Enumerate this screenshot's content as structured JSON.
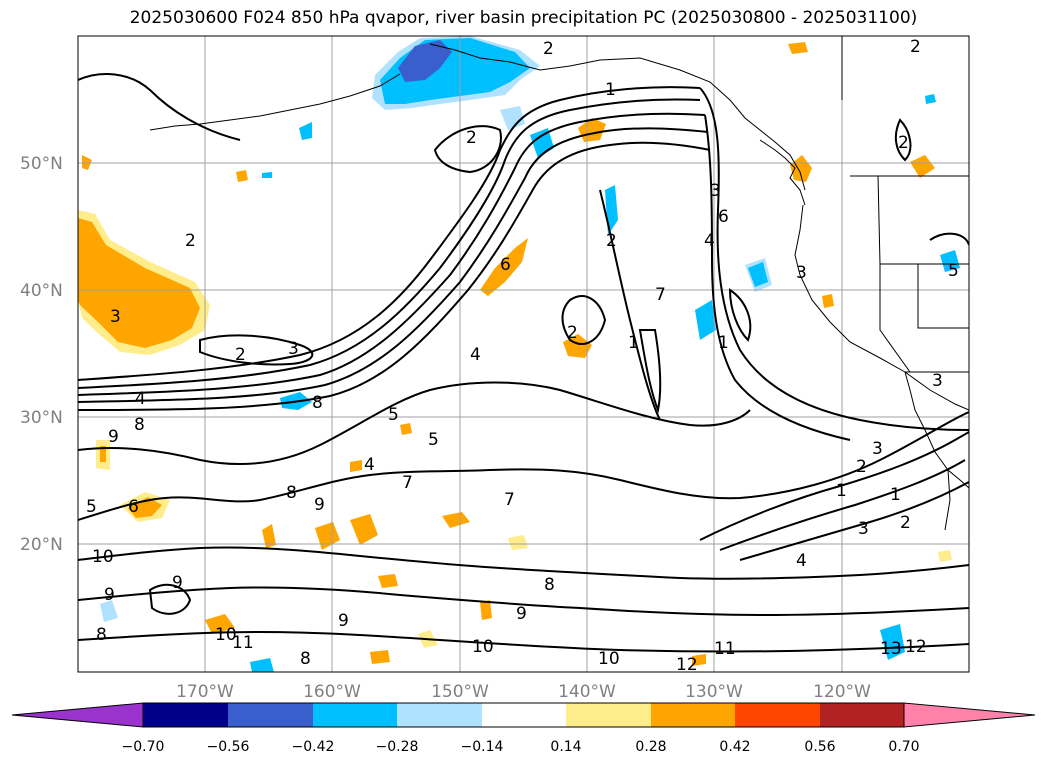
{
  "title": "2025030600 F024 850 hPa qvapor, river basin precipitation PC (2025030800 - 2025031100)",
  "lat_labels": [
    "50°N",
    "40°N",
    "30°N",
    "20°N"
  ],
  "lon_labels": [
    "170°W",
    "160°W",
    "150°W",
    "140°W",
    "130°W",
    "120°W"
  ],
  "colorbar": {
    "colors": [
      "#9a32cd",
      "#00008b",
      "#3a5fcd",
      "#00bfff",
      "#b0e2ff",
      "#ffffff",
      "#ffec8b",
      "#ffa500",
      "#ff4500",
      "#b22222",
      "#ff82ab"
    ],
    "tick_labels": [
      "−0.70",
      "−0.56",
      "−0.42",
      "−0.28",
      "−0.14",
      "0.14",
      "0.28",
      "0.42",
      "0.56",
      "0.70"
    ]
  },
  "contour_labels": [
    "2",
    "1",
    "2",
    "2",
    "3",
    "2",
    "3",
    "4",
    "8",
    "9",
    "8",
    "5",
    "6",
    "5",
    "4",
    "5",
    "6",
    "7",
    "8",
    "9",
    "7",
    "10",
    "9",
    "9",
    "8",
    "10",
    "11",
    "9",
    "8",
    "10",
    "8",
    "9",
    "10",
    "11",
    "12",
    "13",
    "12",
    "4",
    "3",
    "2",
    "1",
    "1",
    "2",
    "3",
    "3",
    "1",
    "2",
    "3",
    "4",
    "2",
    "7",
    "1",
    "3",
    "6",
    "4",
    "2",
    "2",
    "5"
  ]
}
